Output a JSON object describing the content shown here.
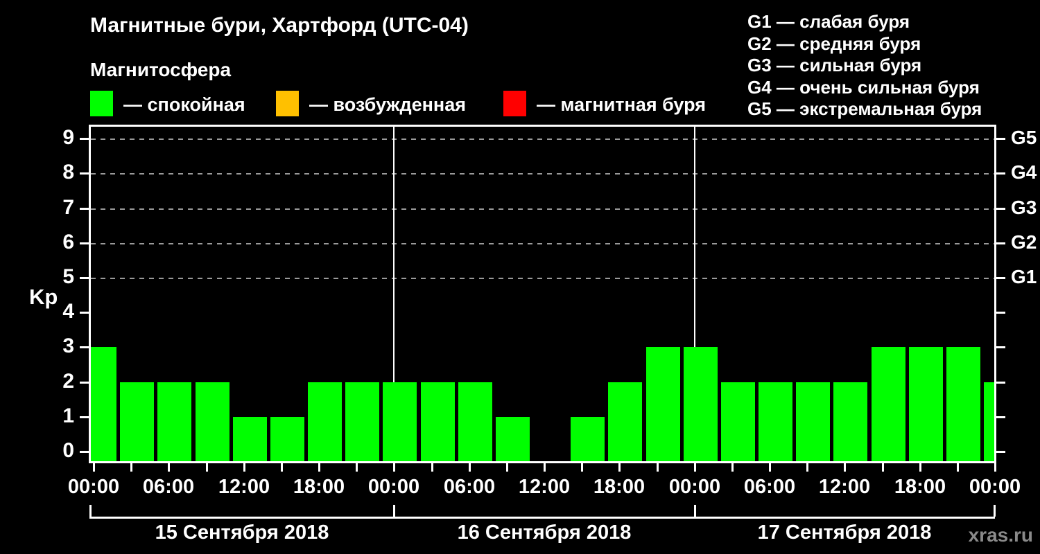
{
  "title": "Магнитные бури, Хартфорд (UTC-04)",
  "subtitle": "Магнитосфера",
  "series_legend": [
    {
      "name": "quiet",
      "label": "— спокойная",
      "color": "#00ff00"
    },
    {
      "name": "excited",
      "label": "— возбужденная",
      "color": "#ffc000"
    },
    {
      "name": "storm",
      "label": "— магнитная буря",
      "color": "#ff0000"
    }
  ],
  "g_scale_legend": [
    "G1 — слабая буря",
    "G2 — средняя буря",
    "G3 — сильная буря",
    "G4 — очень сильная буря",
    "G5 — экстремальная буря"
  ],
  "watermark": "xras.ru",
  "chart_data": {
    "type": "bar",
    "title": "Магнитные бури, Хартфорд (UTC-04)",
    "ylabel": "Kp",
    "ylim": [
      0,
      9
    ],
    "y_ticks": [
      0,
      1,
      2,
      3,
      4,
      5,
      6,
      7,
      8,
      9
    ],
    "grid_levels": [
      5,
      6,
      7,
      8,
      9
    ],
    "grid_color": "#9a9a9a",
    "right_axis_labels": [
      {
        "kp": 5,
        "label": "G1"
      },
      {
        "kp": 6,
        "label": "G2"
      },
      {
        "kp": 7,
        "label": "G3"
      },
      {
        "kp": 8,
        "label": "G4"
      },
      {
        "kp": 9,
        "label": "G5"
      }
    ],
    "x_tick_labels": [
      "00:00",
      "06:00",
      "12:00",
      "18:00",
      "00:00",
      "06:00",
      "12:00",
      "18:00",
      "00:00",
      "06:00",
      "12:00",
      "18:00",
      "00:00"
    ],
    "bar_interval_hours": 3,
    "bar_color": "#00ff00",
    "days": [
      {
        "date": "15 Сентября 2018",
        "values": [
          3,
          2,
          2,
          2,
          1,
          1,
          2,
          2
        ]
      },
      {
        "date": "16 Сентября 2018",
        "values": [
          2,
          2,
          2,
          1,
          0,
          1,
          2,
          3
        ]
      },
      {
        "date": "17 Сентября 2018",
        "values": [
          3,
          2,
          2,
          2,
          2,
          3,
          3,
          3
        ]
      }
    ],
    "partial_next_bar": 2
  }
}
